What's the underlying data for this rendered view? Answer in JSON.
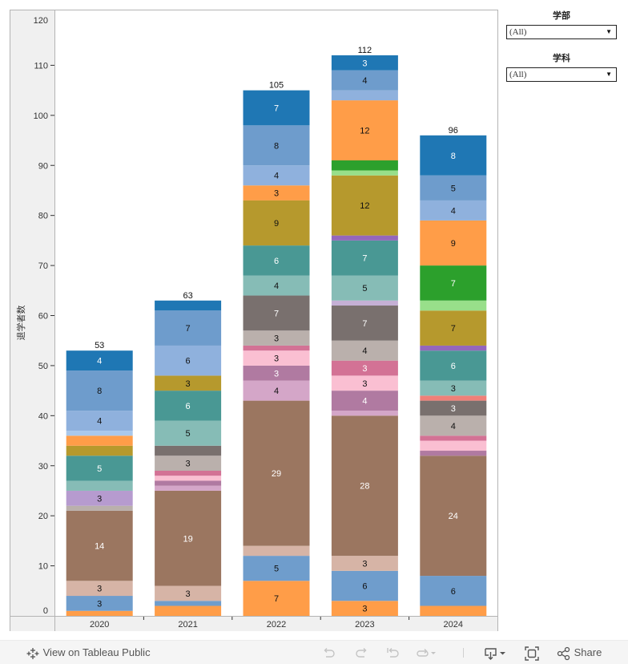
{
  "filters": [
    {
      "title": "学部",
      "value": "(All)"
    },
    {
      "title": "学科",
      "value": "(All)"
    }
  ],
  "footer": {
    "view_on_tableau": "View on Tableau Public",
    "share": "Share",
    "icons": [
      "tableau-logo-icon",
      "undo-icon",
      "redo-icon",
      "revert-icon",
      "refresh-icon",
      "download-icon",
      "fullscreen-icon",
      "share-icon"
    ]
  },
  "colors": {
    "orange_lo": "#FF9D48",
    "blue_lo": "#6F9DCC",
    "tan": "#D6B4A6",
    "brown": "#9B7660",
    "thistle": "#D4A6C8",
    "mauve": "#B07AA1",
    "pink": "#FABFD2",
    "rose": "#D37295",
    "warm_gray": "#BAB0AC",
    "dark_gray": "#79706E",
    "salmon": "#F08078",
    "lilac": "#B69BCF",
    "lavender": "#C5B0D5",
    "light_teal": "#86BCB6",
    "teal": "#499894",
    "purple": "#9467BD",
    "olive": "#B6992D",
    "light_green": "#98DF8A",
    "green": "#2CA02C",
    "orange_hi": "#FF9D48",
    "pale_blue": "#A9C8EB",
    "light_blue": "#8FB1DD",
    "blue_hi": "#6E9CCC",
    "dark_blue": "#1F77B4"
  },
  "chart_data": {
    "type": "bar",
    "stacked": true,
    "title": "",
    "xlabel": "",
    "ylabel": "退学者数",
    "ylim": [
      0,
      120
    ],
    "yticks": [
      0,
      10,
      20,
      30,
      40,
      50,
      60,
      70,
      80,
      90,
      100,
      110,
      120
    ],
    "grid": false,
    "categories": [
      "2020",
      "2021",
      "2022",
      "2023",
      "2024"
    ],
    "totals": [
      53,
      63,
      105,
      112,
      96
    ],
    "stacks": [
      [
        {
          "c": "orange_lo",
          "v": 1
        },
        {
          "c": "blue_lo",
          "v": 3
        },
        {
          "c": "tan",
          "v": 3
        },
        {
          "c": "brown",
          "v": 14
        },
        {
          "c": "warm_gray",
          "v": 1
        },
        {
          "c": "lilac",
          "v": 3
        },
        {
          "c": "light_teal",
          "v": 2
        },
        {
          "c": "teal",
          "v": 5
        },
        {
          "c": "olive",
          "v": 2
        },
        {
          "c": "orange_hi",
          "v": 2
        },
        {
          "c": "pale_blue",
          "v": 1
        },
        {
          "c": "light_blue",
          "v": 4
        },
        {
          "c": "blue_hi",
          "v": 8
        },
        {
          "c": "dark_blue",
          "v": 4
        }
      ],
      [
        {
          "c": "orange_lo",
          "v": 2
        },
        {
          "c": "blue_lo",
          "v": 1
        },
        {
          "c": "tan",
          "v": 3
        },
        {
          "c": "brown",
          "v": 19
        },
        {
          "c": "thistle",
          "v": 1
        },
        {
          "c": "mauve",
          "v": 1
        },
        {
          "c": "pink",
          "v": 1
        },
        {
          "c": "rose",
          "v": 1
        },
        {
          "c": "warm_gray",
          "v": 3
        },
        {
          "c": "dark_gray",
          "v": 2
        },
        {
          "c": "light_teal",
          "v": 5
        },
        {
          "c": "teal",
          "v": 6
        },
        {
          "c": "olive",
          "v": 3
        },
        {
          "c": "light_blue",
          "v": 6
        },
        {
          "c": "blue_hi",
          "v": 7
        },
        {
          "c": "dark_blue",
          "v": 2
        }
      ],
      [
        {
          "c": "orange_lo",
          "v": 7
        },
        {
          "c": "blue_lo",
          "v": 5
        },
        {
          "c": "tan",
          "v": 2
        },
        {
          "c": "brown",
          "v": 29
        },
        {
          "c": "thistle",
          "v": 4
        },
        {
          "c": "mauve",
          "v": 3
        },
        {
          "c": "pink",
          "v": 3
        },
        {
          "c": "rose",
          "v": 1
        },
        {
          "c": "warm_gray",
          "v": 3
        },
        {
          "c": "dark_gray",
          "v": 7
        },
        {
          "c": "light_teal",
          "v": 4
        },
        {
          "c": "teal",
          "v": 6
        },
        {
          "c": "olive",
          "v": 9
        },
        {
          "c": "orange_hi",
          "v": 3
        },
        {
          "c": "light_blue",
          "v": 4
        },
        {
          "c": "blue_hi",
          "v": 8
        },
        {
          "c": "dark_blue",
          "v": 7
        }
      ],
      [
        {
          "c": "orange_lo",
          "v": 3
        },
        {
          "c": "blue_lo",
          "v": 6
        },
        {
          "c": "tan",
          "v": 3
        },
        {
          "c": "brown",
          "v": 28
        },
        {
          "c": "thistle",
          "v": 1
        },
        {
          "c": "mauve",
          "v": 4
        },
        {
          "c": "pink",
          "v": 3
        },
        {
          "c": "rose",
          "v": 3
        },
        {
          "c": "warm_gray",
          "v": 4
        },
        {
          "c": "dark_gray",
          "v": 7
        },
        {
          "c": "lavender",
          "v": 1
        },
        {
          "c": "light_teal",
          "v": 5
        },
        {
          "c": "teal",
          "v": 7
        },
        {
          "c": "purple",
          "v": 1
        },
        {
          "c": "olive",
          "v": 12
        },
        {
          "c": "light_green",
          "v": 1
        },
        {
          "c": "green",
          "v": 2
        },
        {
          "c": "orange_hi",
          "v": 12
        },
        {
          "c": "light_blue",
          "v": 2
        },
        {
          "c": "blue_hi",
          "v": 4
        },
        {
          "c": "dark_blue",
          "v": 3
        }
      ],
      [
        {
          "c": "orange_lo",
          "v": 2
        },
        {
          "c": "blue_lo",
          "v": 6
        },
        {
          "c": "brown",
          "v": 24
        },
        {
          "c": "mauve",
          "v": 1
        },
        {
          "c": "pink",
          "v": 2
        },
        {
          "c": "rose",
          "v": 1
        },
        {
          "c": "warm_gray",
          "v": 4
        },
        {
          "c": "dark_gray",
          "v": 3
        },
        {
          "c": "salmon",
          "v": 1
        },
        {
          "c": "light_teal",
          "v": 3
        },
        {
          "c": "teal",
          "v": 6
        },
        {
          "c": "purple",
          "v": 1
        },
        {
          "c": "olive",
          "v": 7
        },
        {
          "c": "light_green",
          "v": 2
        },
        {
          "c": "green",
          "v": 7
        },
        {
          "c": "orange_hi",
          "v": 9
        },
        {
          "c": "light_blue",
          "v": 4
        },
        {
          "c": "blue_hi",
          "v": 5
        },
        {
          "c": "dark_blue",
          "v": 8
        }
      ]
    ],
    "label_min_value": 3,
    "white_label_colors": [
      "brown",
      "teal",
      "dark_gray",
      "dark_blue",
      "green",
      "mauve",
      "rose"
    ]
  }
}
